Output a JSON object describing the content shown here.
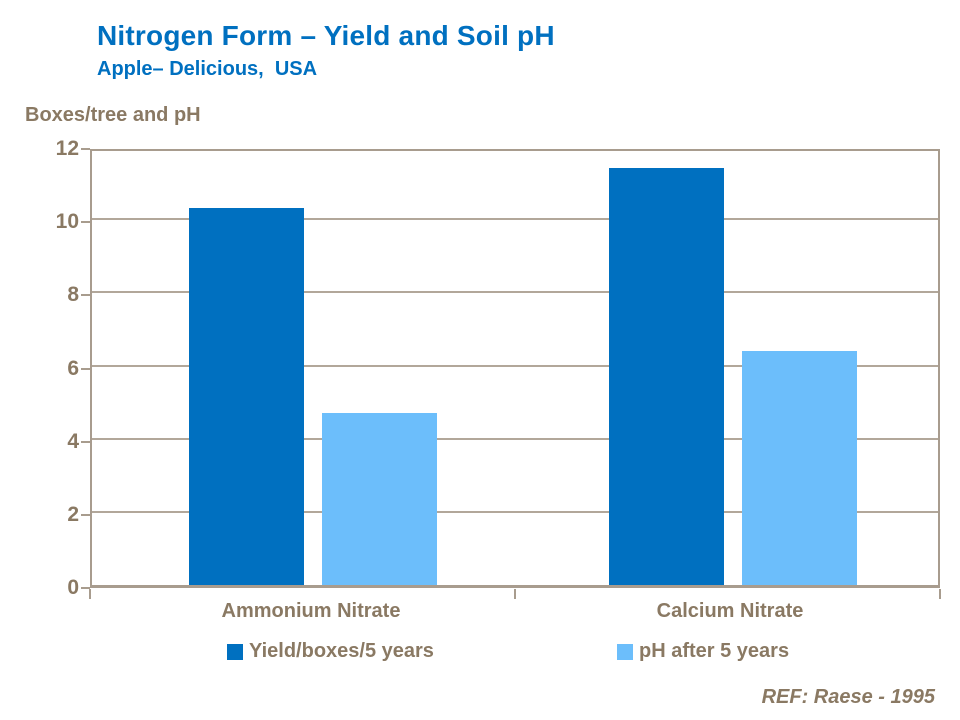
{
  "header": {
    "title": "Nitrogen Form – Yield and Soil pH",
    "subtitle": "Apple– Delicious,  USA"
  },
  "axis_title": "Boxes/tree and pH",
  "footer": {
    "reference": "REF: Raese - 1995"
  },
  "colors": {
    "title_blue": "#0070C0",
    "series_yield": "#0070C0",
    "series_ph": "#6CBEFB",
    "taupe_text": "#8A7963",
    "gridline": "#B2A79A",
    "axis_border": "#A89C8E",
    "background": "#FFFFFF"
  },
  "legend": {
    "items": [
      {
        "label": "Yield/boxes/5 years",
        "color": "#0070C0"
      },
      {
        "label": "pH after 5 years",
        "color": "#6CBEFB"
      }
    ]
  },
  "chart_data": {
    "type": "bar",
    "title": "Nitrogen Form – Yield and Soil pH",
    "subtitle": "Apple– Delicious, USA",
    "categories": [
      "Ammonium Nitrate",
      "Calcium Nitrate"
    ],
    "series": [
      {
        "name": "Yield/boxes/5 years",
        "color": "#0070C0",
        "values": [
          10.3,
          11.4
        ]
      },
      {
        "name": "pH after 5 years",
        "color": "#6CBEFB",
        "values": [
          4.7,
          6.4
        ]
      }
    ],
    "xlabel": "",
    "ylabel": "Boxes/tree and pH",
    "ylim": [
      0,
      12
    ],
    "yticks": [
      0,
      2,
      4,
      6,
      8,
      10,
      12
    ],
    "grid": true,
    "legend_position": "bottom",
    "annotation": "REF: Raese - 1995"
  }
}
